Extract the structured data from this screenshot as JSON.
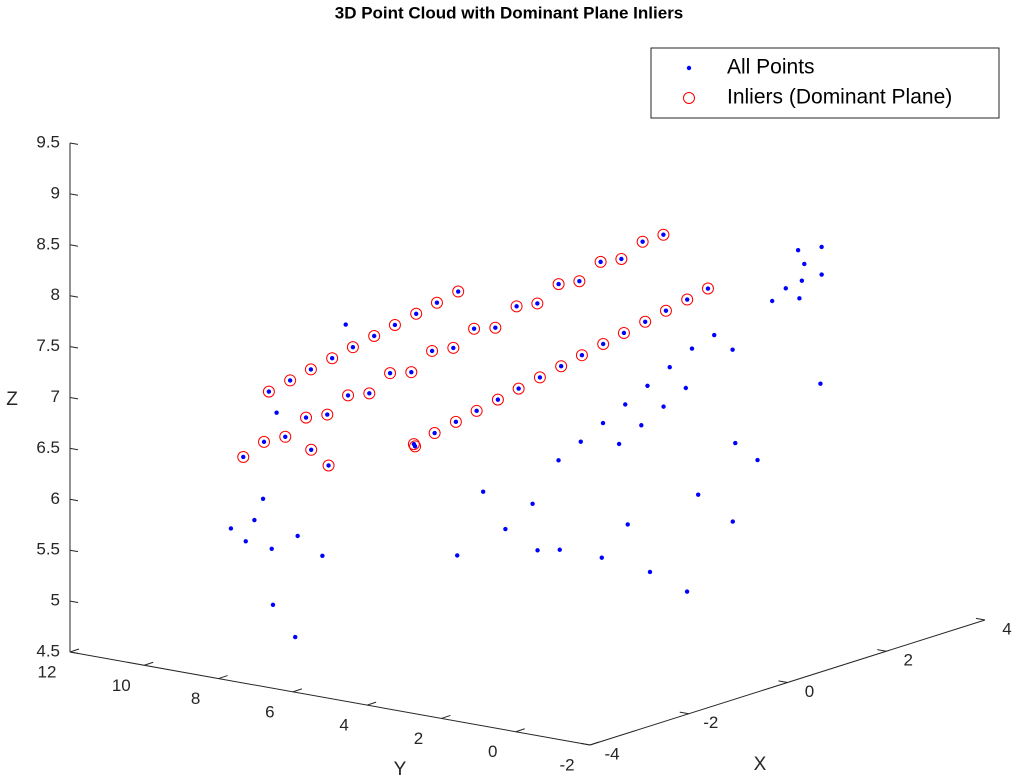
{
  "chart_data": {
    "type": "scatter3d",
    "title": "3D Point Cloud with Dominant Plane Inliers",
    "xlabel": "X",
    "ylabel": "Y",
    "zlabel": "Z",
    "xlim": [
      -4,
      4
    ],
    "ylim": [
      -2,
      12
    ],
    "zlim": [
      4.5,
      9.5
    ],
    "xticks": [
      -4,
      -2,
      0,
      2,
      4
    ],
    "yticks": [
      -2,
      0,
      2,
      4,
      6,
      8,
      10,
      12
    ],
    "zticks": [
      4.5,
      5,
      5.5,
      6,
      6.5,
      7,
      7.5,
      8,
      8.5,
      9,
      9.5
    ],
    "legend": "northeast",
    "series": [
      {
        "name": "All Points",
        "color": "#0000ff",
        "marker": "dot",
        "x": [
          -3.5,
          -3.23,
          -2.95,
          -2.68,
          -2.4,
          -2.13,
          -1.85,
          -1.58,
          -1.3,
          -1.03,
          -0.75,
          -0.48,
          -0.2,
          0.08,
          0.35,
          0.63,
          0.9,
          1.18,
          1.45,
          1.73,
          2.0,
          -1.85,
          -1.58,
          -1.3,
          -1.03,
          -0.75,
          -0.48,
          -0.2,
          0.08,
          0.35,
          0.63,
          0.9,
          1.18,
          1.45,
          1.73,
          2.0,
          -2.68,
          -2.4,
          -2.13,
          -1.85,
          -1.58,
          -1.3,
          -1.03,
          -0.75,
          -0.48,
          -0.2,
          -2.5,
          -2.6,
          -1.6,
          3.3,
          3.5,
          3.1,
          3.6,
          3.2,
          3.4,
          3.0,
          3.7,
          2.8,
          3.3,
          -0.5,
          -0.2,
          0.1,
          0.4,
          0.7,
          1.0,
          1.3,
          1.6,
          0.2,
          0.5,
          0.8,
          1.1,
          -0.8,
          -1.2,
          -1.0,
          -0.4,
          0.0,
          0.3,
          0.6,
          1.2,
          1.5,
          1.8,
          1.6,
          -1.5,
          -1.8,
          0.9,
          -3.5,
          -3.4,
          -3.6,
          -3.3,
          -3.0,
          -2.8,
          -3.5,
          -3.2,
          -3.6,
          -1.5,
          -2.9
        ],
        "y": [
          8,
          7.8,
          7.6,
          7.4,
          7.2,
          7.0,
          6.8,
          6.6,
          6.4,
          6.2,
          6.0,
          5.8,
          5.6,
          5.4,
          5.2,
          5.0,
          4.8,
          4.6,
          4.4,
          4.2,
          4.0,
          5.6,
          5.4,
          5.2,
          5.0,
          4.8,
          4.6,
          4.4,
          4.2,
          4.0,
          3.8,
          3.6,
          3.4,
          3.2,
          3.0,
          2.8,
          8.4,
          8.2,
          8.0,
          7.8,
          7.6,
          7.4,
          7.2,
          7.0,
          6.8,
          6.6,
          7.5,
          6.9,
          5.9,
          2,
          2.2,
          1.8,
          2.5,
          2.3,
          1.6,
          2.4,
          2.0,
          3.2,
          1.5,
          3.5,
          3.3,
          3.1,
          2.9,
          2.7,
          2.5,
          2.3,
          2.1,
          2.8,
          2.6,
          2.4,
          2.2,
          3.8,
          4.0,
          3.4,
          3.6,
          3.0,
          2.7,
          2.5,
          2.0,
          1.4,
          1.2,
          1.6,
          4.2,
          4.5,
          1.9,
          7.7,
          7.6,
          7.8,
          7.5,
          7.2,
          6.8,
          7.2,
          7.0,
          8.2,
          7.9,
          7.9
        ],
        "z": [
          6.6,
          6.72,
          6.74,
          6.9,
          6.9,
          7.06,
          7.05,
          7.22,
          7.2,
          7.38,
          7.38,
          7.54,
          7.52,
          7.7,
          7.7,
          7.86,
          7.86,
          8.02,
          8.02,
          8.16,
          8.2,
          6.63,
          6.71,
          6.79,
          6.87,
          6.95,
          7.03,
          7.11,
          7.19,
          7.27,
          7.35,
          7.43,
          7.51,
          7.59,
          7.67,
          7.75,
          7.09,
          7.17,
          7.25,
          7.33,
          7.41,
          7.49,
          7.57,
          7.65,
          7.73,
          7.81,
          6.55,
          6.45,
          6.55,
          7.68,
          7.8,
          7.55,
          7.9,
          7.6,
          7.75,
          7.5,
          7.95,
          7.0,
          6.7,
          6.4,
          6.55,
          6.7,
          6.85,
          7.0,
          7.15,
          7.3,
          7.4,
          6.5,
          6.65,
          6.8,
          6.95,
          6.0,
          5.8,
          5.6,
          5.5,
          5.4,
          5.7,
          5.2,
          5.9,
          6.4,
          6.2,
          5.6,
          6.2,
          5.6,
          5.0,
          6.0,
          6.2,
          5.8,
          5.7,
          5.8,
          5.6,
          5.2,
          4.85,
          5.9,
          7.6,
          6.95
        ]
      },
      {
        "name": "Inliers (Dominant Plane)",
        "color": "#ff0000",
        "marker": "circle",
        "x": [
          -3.5,
          -3.23,
          -2.95,
          -2.68,
          -2.4,
          -2.13,
          -1.85,
          -1.58,
          -1.3,
          -1.03,
          -0.75,
          -0.48,
          -0.2,
          0.08,
          0.35,
          0.63,
          0.9,
          1.18,
          1.45,
          1.73,
          2.0,
          -1.85,
          -1.58,
          -1.3,
          -1.03,
          -0.75,
          -0.48,
          -0.2,
          0.08,
          0.35,
          0.63,
          0.9,
          1.18,
          1.45,
          1.73,
          2.0,
          -2.68,
          -2.4,
          -2.13,
          -1.85,
          -1.58,
          -1.3,
          -1.03,
          -0.75,
          -0.48,
          -0.2,
          -2.5,
          -2.6,
          -1.6
        ],
        "y": [
          8,
          7.8,
          7.6,
          7.4,
          7.2,
          7.0,
          6.8,
          6.6,
          6.4,
          6.2,
          6.0,
          5.8,
          5.6,
          5.4,
          5.2,
          5.0,
          4.8,
          4.6,
          4.4,
          4.2,
          4.0,
          5.6,
          5.4,
          5.2,
          5.0,
          4.8,
          4.6,
          4.4,
          4.2,
          4.0,
          3.8,
          3.6,
          3.4,
          3.2,
          3.0,
          2.8,
          8.4,
          8.2,
          8.0,
          7.8,
          7.6,
          7.4,
          7.2,
          7.0,
          6.8,
          6.6,
          7.5,
          6.9,
          5.9
        ],
        "z": [
          6.6,
          6.72,
          6.74,
          6.9,
          6.9,
          7.06,
          7.05,
          7.22,
          7.2,
          7.38,
          7.38,
          7.54,
          7.52,
          7.7,
          7.7,
          7.86,
          7.86,
          8.02,
          8.02,
          8.16,
          8.2,
          6.63,
          6.71,
          6.79,
          6.87,
          6.95,
          7.03,
          7.11,
          7.19,
          7.27,
          7.35,
          7.43,
          7.51,
          7.59,
          7.67,
          7.75,
          7.09,
          7.17,
          7.25,
          7.33,
          7.41,
          7.49,
          7.57,
          7.65,
          7.73,
          7.81,
          6.55,
          6.45,
          6.55
        ]
      }
    ]
  }
}
